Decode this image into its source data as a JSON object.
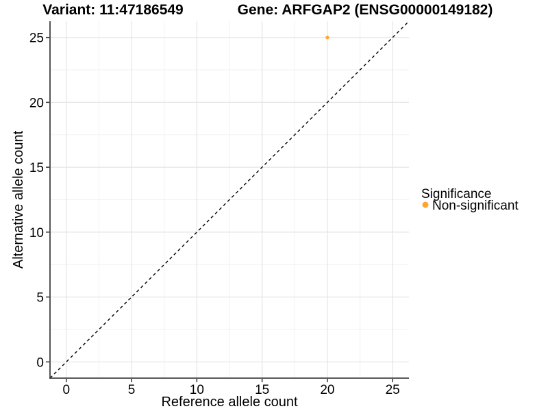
{
  "chart_data": {
    "type": "scatter",
    "title_left": "Variant: 11:47186549",
    "title_right": "Gene: ARFGAP2 (ENSG00000149182)",
    "xlabel": "Reference allele count",
    "ylabel": "Alternative allele count",
    "xlim": [
      -1.25,
      26.25
    ],
    "ylim": [
      -1.25,
      26.25
    ],
    "x_ticks": [
      0,
      5,
      10,
      15,
      20,
      25
    ],
    "y_ticks": [
      0,
      5,
      10,
      15,
      20,
      25
    ],
    "x_minor_ticks": [
      2.5,
      7.5,
      12.5,
      17.5,
      22.5
    ],
    "y_minor_ticks": [
      2.5,
      7.5,
      12.5,
      17.5,
      22.5
    ],
    "grid": true,
    "reference_line": {
      "slope": 1,
      "intercept": 0,
      "style": "dashed",
      "color": "#000000"
    },
    "series": [
      {
        "name": "Non-significant",
        "color": "#FFA52E",
        "points": [
          {
            "x": 20,
            "y": 25
          }
        ]
      }
    ],
    "legend": {
      "title": "Significance",
      "position": "right",
      "items": [
        {
          "label": "Non-significant",
          "color": "#FFA52E"
        }
      ]
    },
    "colors": {
      "background": "#FFFFFF",
      "axis_line": "#404040",
      "tick_label": "#1a1a1a",
      "grid_major": "#E4E4E4",
      "grid_minor": "#F1F1F1",
      "point": "#FFA52E"
    }
  }
}
